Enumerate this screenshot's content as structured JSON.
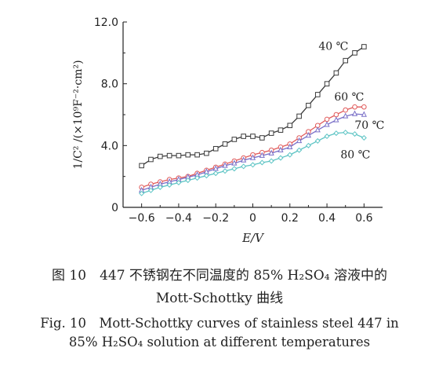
{
  "chart_data": {
    "type": "line",
    "x": [
      -0.6,
      -0.55,
      -0.5,
      -0.45,
      -0.4,
      -0.35,
      -0.3,
      -0.25,
      -0.2,
      -0.15,
      -0.1,
      -0.05,
      0.0,
      0.05,
      0.1,
      0.15,
      0.2,
      0.25,
      0.3,
      0.35,
      0.4,
      0.45,
      0.5,
      0.55,
      0.6
    ],
    "series": [
      {
        "name": "40 ℃",
        "marker": "square",
        "color": "#3a3a3a",
        "values": [
          2.7,
          3.1,
          3.3,
          3.35,
          3.35,
          3.4,
          3.4,
          3.5,
          3.8,
          4.1,
          4.4,
          4.6,
          4.6,
          4.5,
          4.8,
          5.0,
          5.3,
          5.9,
          6.6,
          7.3,
          8.0,
          8.7,
          9.5,
          10.0,
          10.4
        ]
      },
      {
        "name": "60 ℃",
        "marker": "circle",
        "color": "#e05a5a",
        "values": [
          1.3,
          1.5,
          1.65,
          1.8,
          1.9,
          2.0,
          2.2,
          2.4,
          2.6,
          2.8,
          3.0,
          3.2,
          3.4,
          3.55,
          3.7,
          3.9,
          4.1,
          4.5,
          4.9,
          5.3,
          5.7,
          6.0,
          6.3,
          6.5,
          6.5
        ]
      },
      {
        "name": "70 ℃",
        "marker": "triangle",
        "color": "#7a70c8",
        "values": [
          1.1,
          1.3,
          1.5,
          1.65,
          1.8,
          1.95,
          2.1,
          2.3,
          2.5,
          2.7,
          2.85,
          3.05,
          3.2,
          3.35,
          3.5,
          3.7,
          3.9,
          4.3,
          4.65,
          5.0,
          5.35,
          5.65,
          5.9,
          6.05,
          6.0
        ]
      },
      {
        "name": "80 ℃",
        "marker": "diamond",
        "color": "#5cc4c4",
        "values": [
          0.9,
          1.1,
          1.3,
          1.45,
          1.6,
          1.75,
          1.9,
          2.05,
          2.2,
          2.35,
          2.5,
          2.65,
          2.75,
          2.9,
          3.0,
          3.2,
          3.4,
          3.7,
          4.0,
          4.3,
          4.6,
          4.8,
          4.85,
          4.75,
          4.5
        ]
      }
    ],
    "xlabel": "E/V",
    "ylabel": "1/C² /(×10⁹F⁻²·cm²)",
    "xlim": [
      -0.7,
      0.7
    ],
    "ylim": [
      0,
      12.0
    ],
    "xticks": [
      "−0.6",
      "−0.4",
      "−0.2",
      "0",
      "0.2",
      "0.4",
      "0.6"
    ],
    "yticks": [
      "0",
      "4.0",
      "8.0",
      "12.0"
    ],
    "grid": false,
    "legend_placement": "inline labels near curve ends"
  },
  "caption": {
    "zh_line1": "图 10　447 不锈钢在不同温度的 85% H₂SO₄ 溶液中的",
    "zh_line2": "Mott-Schottky 曲线",
    "en_line1": "Fig. 10　Mott-Schottky curves of stainless steel 447 in",
    "en_line2": "85% H₂SO₄ solution at different temperatures"
  }
}
